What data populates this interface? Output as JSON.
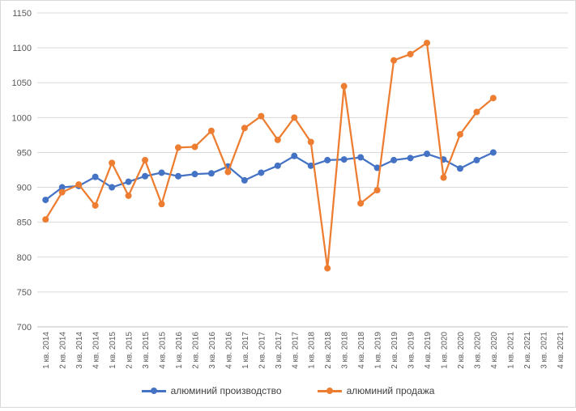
{
  "chart_data": {
    "type": "line",
    "title": "",
    "xlabel": "",
    "ylabel": "",
    "ylim": [
      700,
      1150
    ],
    "yticks": [
      700,
      750,
      800,
      850,
      900,
      950,
      1000,
      1050,
      1100,
      1150
    ],
    "grid": true,
    "legend_position": "bottom",
    "categories": [
      "1 кв. 2014",
      "2 кв. 2014",
      "3 кв. 2014",
      "4 кв. 2014",
      "1 кв. 2015",
      "2 кв. 2015",
      "3 кв. 2015",
      "4 кв. 2015",
      "1 кв. 2016",
      "2 кв. 2016",
      "3 кв. 2016",
      "4 кв. 2016",
      "1 кв. 2017",
      "2 кв. 2017",
      "3 кв. 2017",
      "4 кв. 2017",
      "1 кв. 2018",
      "2 кв. 2018",
      "3 кв. 2018",
      "4 кв. 2018",
      "1 кв. 2019",
      "2 кв. 2019",
      "3 кв. 2019",
      "4 кв. 2019",
      "1 кв. 2020",
      "2 кв. 2020",
      "3 кв. 2020",
      "4 кв. 2020",
      "1 кв. 2021",
      "2 кв. 2021",
      "3 кв. 2021",
      "4 кв. 2021"
    ],
    "series": [
      {
        "name": "алюминий производство",
        "color": "#4472C4",
        "values": [
          882,
          900,
          902,
          915,
          900,
          908,
          916,
          921,
          916,
          919,
          920,
          930,
          910,
          921,
          931,
          945,
          931,
          939,
          940,
          943,
          928,
          939,
          942,
          948,
          940,
          927,
          939,
          950,
          null,
          null,
          null,
          null
        ]
      },
      {
        "name": "алюминий продажа",
        "color": "#ED7D31",
        "values": [
          854,
          893,
          904,
          874,
          935,
          888,
          939,
          876,
          957,
          958,
          981,
          922,
          985,
          1002,
          968,
          1000,
          965,
          784,
          1045,
          877,
          896,
          1082,
          1091,
          1107,
          914,
          976,
          1008,
          1028,
          null,
          null,
          null,
          null
        ]
      }
    ]
  }
}
